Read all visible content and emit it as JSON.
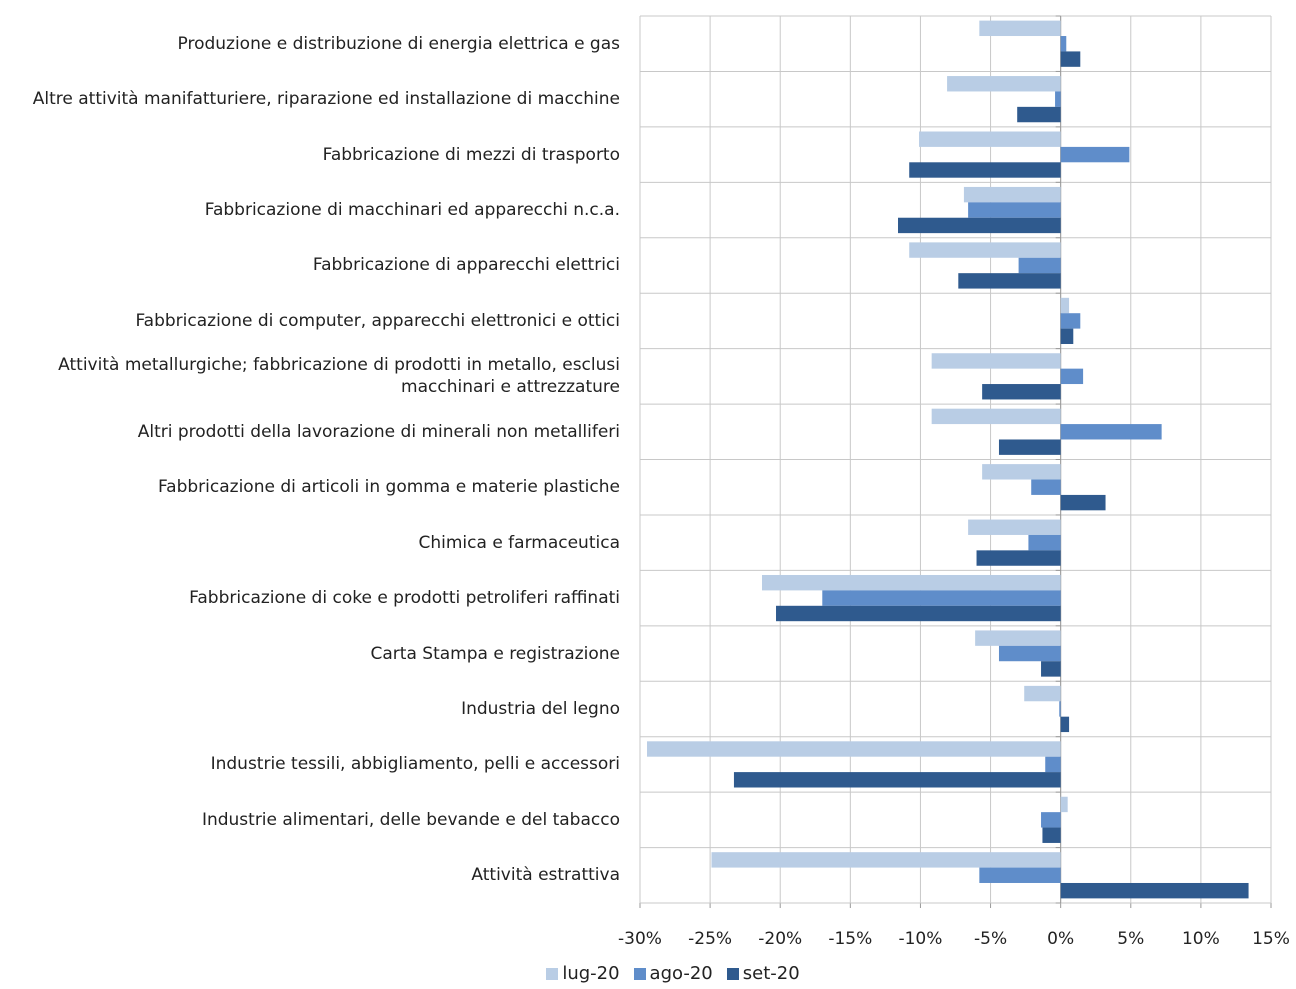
{
  "chart_data": {
    "type": "hbar",
    "categories": [
      "Produzione e distribuzione di energia elettrica e gas",
      "Altre attività manifatturiere, riparazione ed installazione di macchine",
      "Fabbricazione di mezzi di trasporto",
      "Fabbricazione di macchinari ed apparecchi n.c.a.",
      "Fabbricazione di apparecchi elettrici",
      "Fabbricazione di computer, apparecchi elettronici e ottici",
      "Attività metallurgiche; fabbricazione di prodotti in metallo, esclusi macchinari e attrezzature",
      "Altri prodotti della lavorazione di minerali non metalliferi",
      "Fabbricazione di articoli in gomma e materie plastiche",
      "Chimica e farmaceutica",
      "Fabbricazione di coke e prodotti petroliferi raffinati",
      "Carta Stampa e registrazione",
      "Industria del legno",
      "Industrie tessili, abbigliamento, pelli e accessori",
      "Industrie alimentari, delle bevande e del tabacco",
      "Attività estrattiva"
    ],
    "series": [
      {
        "name": "lug-20",
        "color": "#b9cde5",
        "values": [
          -5.8,
          -8.1,
          -10.1,
          -6.9,
          -10.8,
          0.6,
          -9.2,
          -9.2,
          -5.6,
          -6.6,
          -21.3,
          -6.1,
          -2.6,
          -29.5,
          0.5,
          -24.9
        ]
      },
      {
        "name": "ago-20",
        "color": "#5f8dca",
        "values": [
          0.4,
          -0.4,
          4.9,
          -6.6,
          -3.0,
          1.4,
          1.6,
          7.2,
          -2.1,
          -2.3,
          -17.0,
          -4.4,
          -0.1,
          -1.1,
          -1.4,
          -5.8
        ]
      },
      {
        "name": "set-20",
        "color": "#2f5a8e",
        "values": [
          1.4,
          -3.1,
          -10.8,
          -11.6,
          -7.3,
          0.9,
          -5.6,
          -4.4,
          3.2,
          -6.0,
          -20.3,
          -1.4,
          0.6,
          -23.3,
          -1.3,
          13.4
        ]
      }
    ],
    "xlim": [
      -30,
      15
    ],
    "xticks": [
      {
        "value": -30,
        "label": "-30%"
      },
      {
        "value": -25,
        "label": "-25%"
      },
      {
        "value": -20,
        "label": "-20%"
      },
      {
        "value": -15,
        "label": "-15%"
      },
      {
        "value": -10,
        "label": "-10%"
      },
      {
        "value": -5,
        "label": "-5%"
      },
      {
        "value": 0,
        "label": "0%"
      },
      {
        "value": 5,
        "label": "5%"
      },
      {
        "value": 10,
        "label": "10%"
      },
      {
        "value": 15,
        "label": "15%"
      }
    ],
    "grid": true
  }
}
